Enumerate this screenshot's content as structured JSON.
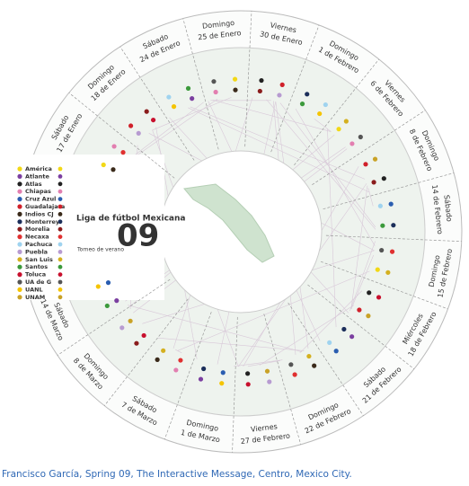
{
  "header": {
    "title": "Liga de fútbol Mexicana",
    "subtitle": "Torneo de verano",
    "number": "09"
  },
  "teams": [
    {
      "name": "América",
      "color": "#f2d816"
    },
    {
      "name": "Atlante",
      "color": "#7b3fa0"
    },
    {
      "name": "Atlas",
      "color": "#222222"
    },
    {
      "name": "Chiapas",
      "color": "#e27fb0"
    },
    {
      "name": "Cruz Azul",
      "color": "#2a5db0"
    },
    {
      "name": "Guadalajara",
      "color": "#d0202a"
    },
    {
      "name": "Indios CJ",
      "color": "#3a2a1a"
    },
    {
      "name": "Monterrey",
      "color": "#1b2e5a"
    },
    {
      "name": "Morelia",
      "color": "#8a1c1c"
    },
    {
      "name": "Necaxa",
      "color": "#e03030"
    },
    {
      "name": "Pachuca",
      "color": "#9fd3ef"
    },
    {
      "name": "Puebla",
      "color": "#b79bd1"
    },
    {
      "name": "San Luis",
      "color": "#d4b020"
    },
    {
      "name": "Santos",
      "color": "#3b9a3b"
    },
    {
      "name": "Toluca",
      "color": "#c8102e"
    },
    {
      "name": "UA de G",
      "color": "#555555"
    },
    {
      "name": "UANL",
      "color": "#f5c400"
    },
    {
      "name": "UNAM",
      "color": "#c9a227"
    }
  ],
  "dates": [
    {
      "day": "Sábado",
      "date": "17 de Enero"
    },
    {
      "day": "Domingo",
      "date": "18 de Enero"
    },
    {
      "day": "Sábado",
      "date": "24 de Enero"
    },
    {
      "day": "Domingo",
      "date": "25 de Enero"
    },
    {
      "day": "Viernes",
      "date": "30 de Enero"
    },
    {
      "day": "Domingo",
      "date": "1 de Febrero"
    },
    {
      "day": "Viernes",
      "date": "6 de Febrero"
    },
    {
      "day": "Domingo",
      "date": "8 de Febrero"
    },
    {
      "day": "Sábado",
      "date": "14 de Febrero"
    },
    {
      "day": "Domingo",
      "date": "15 de Febrero"
    },
    {
      "day": "Miércoles",
      "date": "18 de Febrero"
    },
    {
      "day": "Sábado",
      "date": "21 de Febrero"
    },
    {
      "day": "Domingo",
      "date": "22 de Febrero"
    },
    {
      "day": "Viernes",
      "date": "27 de Febrero"
    },
    {
      "day": "Domingo",
      "date": "1 de Marzo"
    },
    {
      "day": "Sábado",
      "date": "7 de Marzo"
    },
    {
      "day": "Domingo",
      "date": "8 de Marzo"
    },
    {
      "day": "Sábado",
      "date": "14 de Marzo"
    }
  ],
  "caption": "Francisco García, Spring 09, The Interactive Message, Centro, Mexico City."
}
